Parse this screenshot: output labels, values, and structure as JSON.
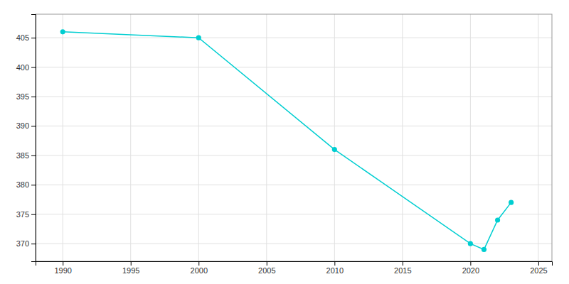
{
  "chart_data": {
    "type": "line",
    "x": [
      1990,
      2000,
      2010,
      2020,
      2021,
      2022,
      2023
    ],
    "values": [
      406,
      405,
      386,
      370,
      369,
      374,
      377
    ],
    "color": "#00CED1",
    "marker": "circle",
    "xlim": [
      1988,
      2026
    ],
    "ylim": [
      367,
      409
    ],
    "xticks": [
      1990,
      1995,
      2000,
      2005,
      2010,
      2015,
      2020,
      2025
    ],
    "yticks": [
      370,
      375,
      380,
      385,
      390,
      395,
      400,
      405
    ],
    "grid": true
  }
}
